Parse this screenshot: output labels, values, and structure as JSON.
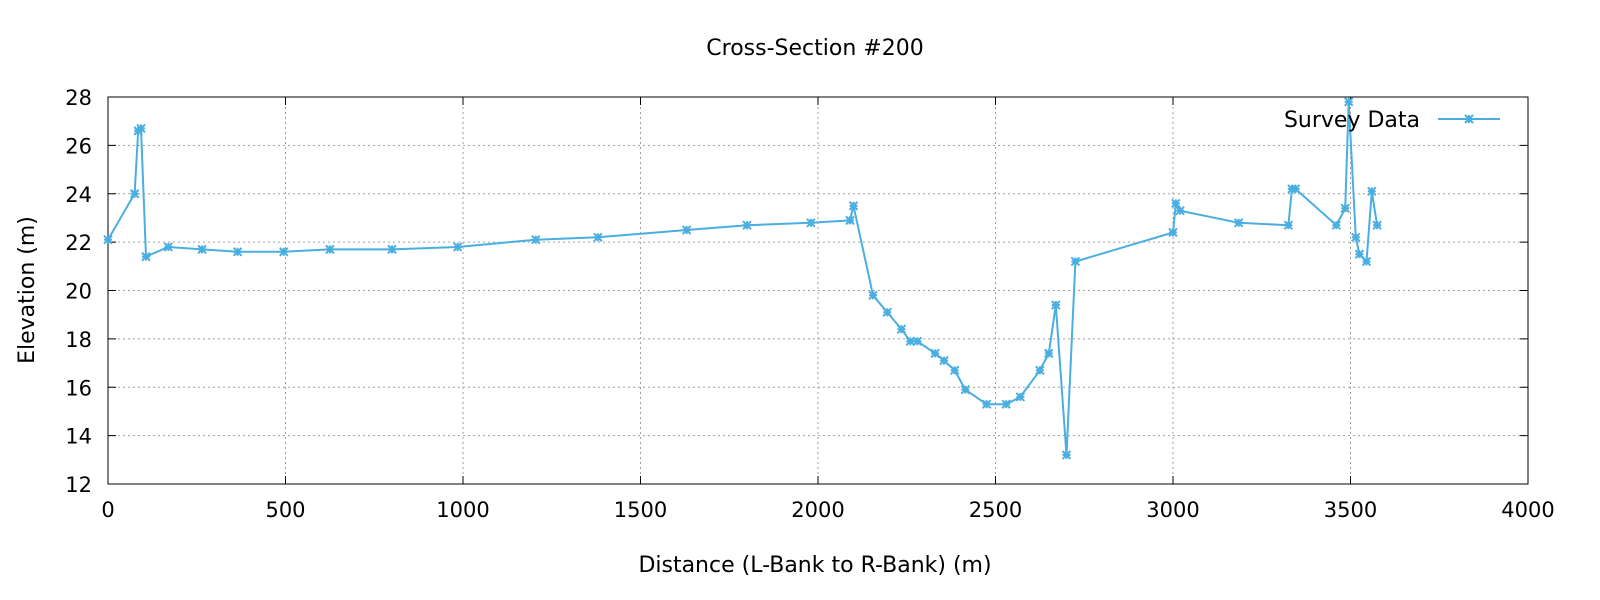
{
  "chart_data": {
    "type": "line",
    "title": "Cross-Section #200",
    "xlabel": "Distance (L-Bank to R-Bank) (m)",
    "ylabel": "Elevation (m)",
    "xlim": [
      0,
      4000
    ],
    "ylim": [
      12,
      28
    ],
    "xticks": [
      0,
      500,
      1000,
      1500,
      2000,
      2500,
      3000,
      3500,
      4000
    ],
    "yticks": [
      12,
      14,
      16,
      18,
      20,
      22,
      24,
      26,
      28
    ],
    "grid": true,
    "legend_position": "top-right",
    "series": [
      {
        "name": "Survey Data",
        "color": "#4aaee0",
        "marker": "asterisk",
        "points": [
          [
            0,
            22.1
          ],
          [
            75,
            24.0
          ],
          [
            85,
            26.6
          ],
          [
            93,
            26.7
          ],
          [
            107,
            21.4
          ],
          [
            170,
            21.8
          ],
          [
            265,
            21.7
          ],
          [
            365,
            21.6
          ],
          [
            495,
            21.6
          ],
          [
            625,
            21.7
          ],
          [
            800,
            21.7
          ],
          [
            985,
            21.8
          ],
          [
            1205,
            22.1
          ],
          [
            1380,
            22.2
          ],
          [
            1630,
            22.5
          ],
          [
            1800,
            22.7
          ],
          [
            1980,
            22.8
          ],
          [
            2090,
            22.9
          ],
          [
            2100,
            23.5
          ],
          [
            2155,
            19.8
          ],
          [
            2195,
            19.1
          ],
          [
            2235,
            18.4
          ],
          [
            2260,
            17.9
          ],
          [
            2280,
            17.9
          ],
          [
            2330,
            17.4
          ],
          [
            2355,
            17.1
          ],
          [
            2385,
            16.7
          ],
          [
            2415,
            15.9
          ],
          [
            2475,
            15.3
          ],
          [
            2530,
            15.3
          ],
          [
            2570,
            15.6
          ],
          [
            2625,
            16.7
          ],
          [
            2650,
            17.4
          ],
          [
            2670,
            19.4
          ],
          [
            2700,
            13.2
          ],
          [
            2725,
            21.2
          ],
          [
            3000,
            22.4
          ],
          [
            3008,
            23.6
          ],
          [
            3020,
            23.3
          ],
          [
            3185,
            22.8
          ],
          [
            3325,
            22.7
          ],
          [
            3335,
            24.2
          ],
          [
            3345,
            24.2
          ],
          [
            3460,
            22.7
          ],
          [
            3485,
            23.4
          ],
          [
            3495,
            27.8
          ],
          [
            3515,
            22.2
          ],
          [
            3525,
            21.5
          ],
          [
            3545,
            21.2
          ],
          [
            3560,
            24.1
          ],
          [
            3575,
            22.7
          ]
        ]
      }
    ]
  }
}
